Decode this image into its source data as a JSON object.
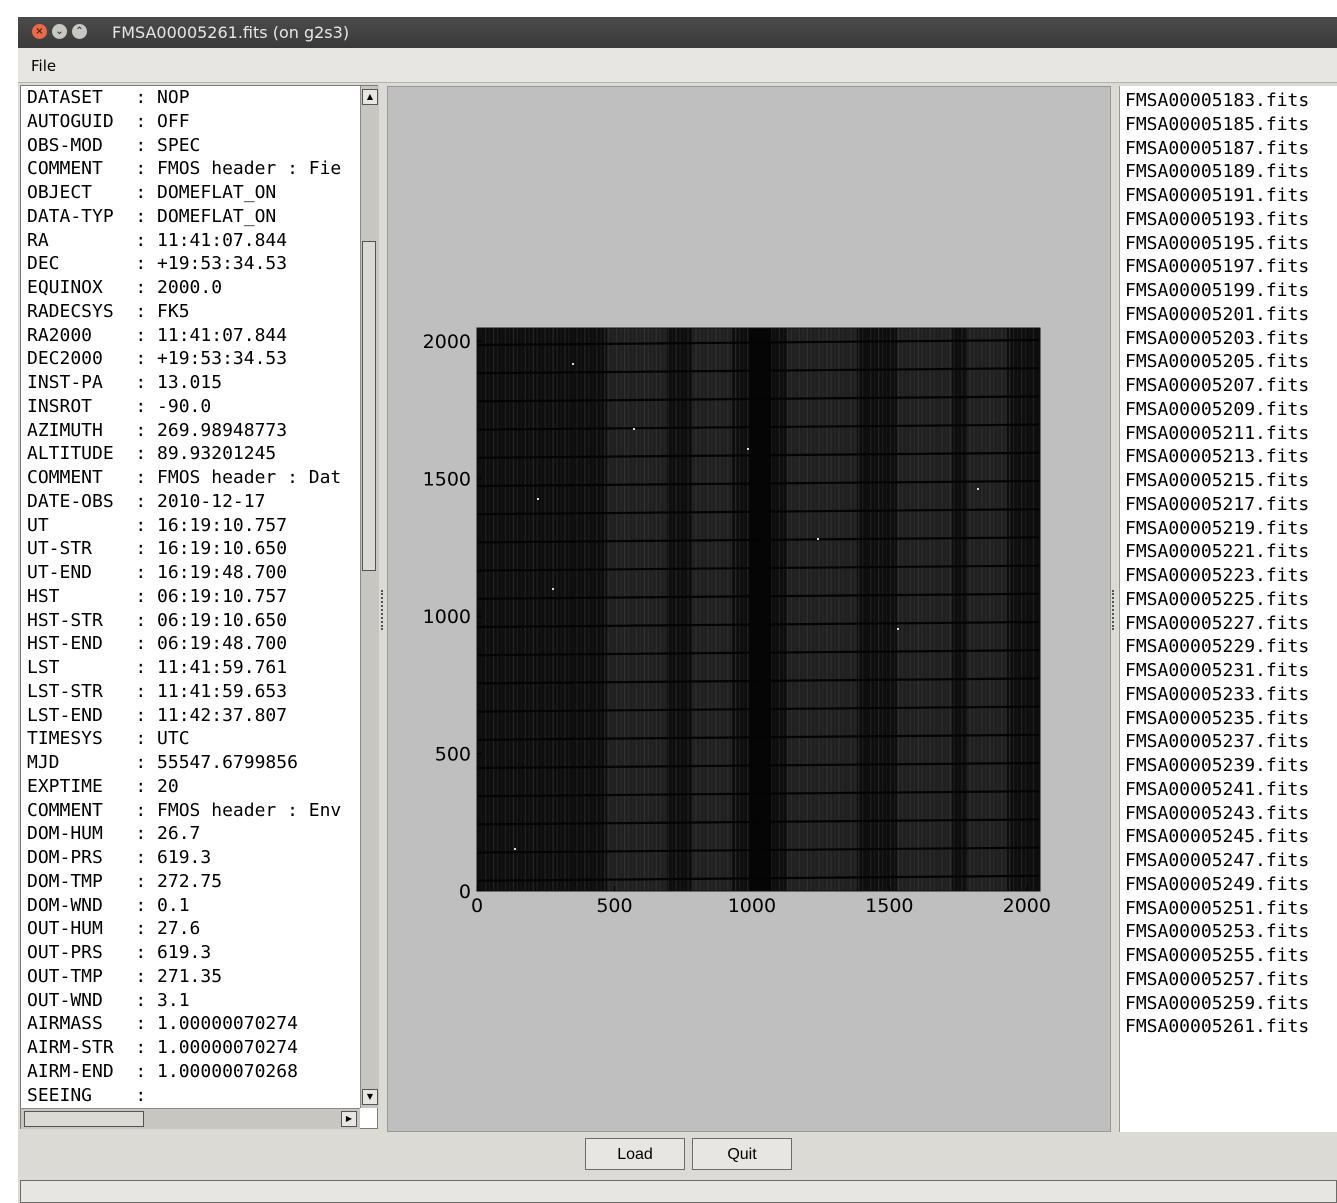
{
  "window": {
    "title": "FMSA00005261.fits (on g2s3)"
  },
  "menubar": {
    "file_label": "File"
  },
  "header_panel": {
    "lines": [
      "DATASET   : NOP",
      "AUTOGUID  : OFF",
      "OBS-MOD   : SPEC",
      "COMMENT   : FMOS header : Fie",
      "OBJECT    : DOMEFLAT_ON",
      "DATA-TYP  : DOMEFLAT_ON",
      "RA        : 11:41:07.844",
      "DEC       : +19:53:34.53",
      "EQUINOX   : 2000.0",
      "RADECSYS  : FK5",
      "RA2000    : 11:41:07.844",
      "DEC2000   : +19:53:34.53",
      "INST-PA   : 13.015",
      "INSROT    : -90.0",
      "AZIMUTH   : 269.98948773",
      "ALTITUDE  : 89.93201245",
      "COMMENT   : FMOS header : Dat",
      "DATE-OBS  : 2010-12-17",
      "UT        : 16:19:10.757",
      "UT-STR    : 16:19:10.650",
      "UT-END    : 16:19:48.700",
      "HST       : 06:19:10.757",
      "HST-STR   : 06:19:10.650",
      "HST-END   : 06:19:48.700",
      "LST       : 11:41:59.761",
      "LST-STR   : 11:41:59.653",
      "LST-END   : 11:42:37.807",
      "TIMESYS   : UTC",
      "MJD       : 55547.6799856",
      "EXPTIME   : 20",
      "COMMENT   : FMOS header : Env",
      "DOM-HUM   : 26.7",
      "DOM-PRS   : 619.3",
      "DOM-TMP   : 272.75",
      "DOM-WND   : 0.1",
      "OUT-HUM   : 27.6",
      "OUT-PRS   : 619.3",
      "OUT-TMP   : 271.35",
      "OUT-WND   : 3.1",
      "AIRMASS   : 1.00000070274",
      "AIRM-STR  : 1.00000070274",
      "AIRM-END  : 1.00000070268",
      "SEEING    :"
    ]
  },
  "image_plot": {
    "x_ticks": [
      "0",
      "500",
      "1000",
      "1500",
      "2000"
    ],
    "y_ticks": [
      "0",
      "500",
      "1000",
      "1500",
      "2000"
    ],
    "xlim": [
      0,
      2048
    ],
    "ylim": [
      0,
      2048
    ],
    "colormap": "gray"
  },
  "file_list": {
    "items": [
      "FMSA00005183.fits",
      "FMSA00005185.fits",
      "FMSA00005187.fits",
      "FMSA00005189.fits",
      "FMSA00005191.fits",
      "FMSA00005193.fits",
      "FMSA00005195.fits",
      "FMSA00005197.fits",
      "FMSA00005199.fits",
      "FMSA00005201.fits",
      "FMSA00005203.fits",
      "FMSA00005205.fits",
      "FMSA00005207.fits",
      "FMSA00005209.fits",
      "FMSA00005211.fits",
      "FMSA00005213.fits",
      "FMSA00005215.fits",
      "FMSA00005217.fits",
      "FMSA00005219.fits",
      "FMSA00005221.fits",
      "FMSA00005223.fits",
      "FMSA00005225.fits",
      "FMSA00005227.fits",
      "FMSA00005229.fits",
      "FMSA00005231.fits",
      "FMSA00005233.fits",
      "FMSA00005235.fits",
      "FMSA00005237.fits",
      "FMSA00005239.fits",
      "FMSA00005241.fits",
      "FMSA00005243.fits",
      "FMSA00005245.fits",
      "FMSA00005247.fits",
      "FMSA00005249.fits",
      "FMSA00005251.fits",
      "FMSA00005253.fits",
      "FMSA00005255.fits",
      "FMSA00005257.fits",
      "FMSA00005259.fits",
      "FMSA00005261.fits"
    ]
  },
  "buttons": {
    "load_label": "Load",
    "quit_label": "Quit"
  },
  "status": {
    "text": ""
  }
}
